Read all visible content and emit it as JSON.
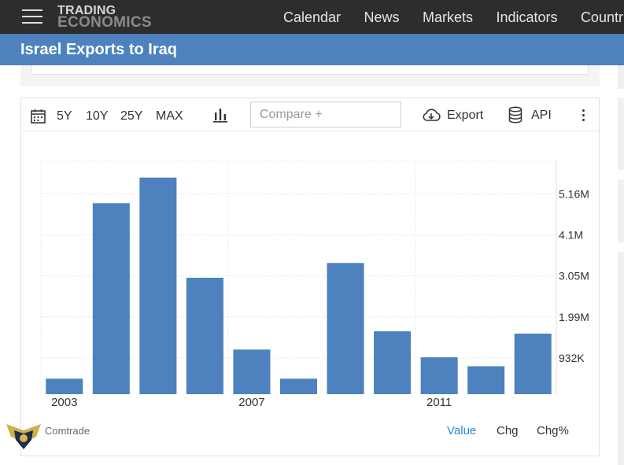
{
  "nav": {
    "logo_line1": "TRADING",
    "logo_line2": "ECONOMICS",
    "items": [
      "Calendar",
      "News",
      "Markets",
      "Indicators",
      "Countrie"
    ]
  },
  "page_title": "Israel Exports to Iraq",
  "toolbar": {
    "ranges": [
      "5Y",
      "10Y",
      "25Y",
      "MAX"
    ],
    "compare_placeholder": "Compare +",
    "export_label": "Export",
    "api_label": "API"
  },
  "footer": {
    "source": "Comtrade",
    "modes": [
      "Value",
      "Chg",
      "Chg%"
    ],
    "active_mode": "Value"
  },
  "colors": {
    "bar": "#4d82bf",
    "title_bar": "#4d82bf",
    "nav_bg": "#2d2d2d",
    "active_mode": "#2a8ad4"
  },
  "icons": [
    "hamburger-icon",
    "calendar-icon",
    "bar-chart-icon",
    "cloud-download-icon",
    "database-icon",
    "more-vertical-icon"
  ],
  "chart_data": {
    "type": "bar",
    "x": [
      2003,
      2004,
      2005,
      2006,
      2007,
      2008,
      2009,
      2010,
      2011,
      2012,
      2013
    ],
    "values": [
      400000,
      4920000,
      5580000,
      3000000,
      1150000,
      400000,
      3380000,
      1620000,
      950000,
      720000,
      1560000
    ],
    "x_tick_labels": [
      "2003",
      "2007",
      "2011"
    ],
    "y_tick_values": [
      932000,
      1990000,
      3050000,
      4100000,
      5160000
    ],
    "y_tick_labels": [
      "932K",
      "1.99M",
      "3.05M",
      "4.1M",
      "5.16M"
    ],
    "ylim": [
      0,
      6000000
    ],
    "y_axis_position": "right",
    "grid": true
  }
}
